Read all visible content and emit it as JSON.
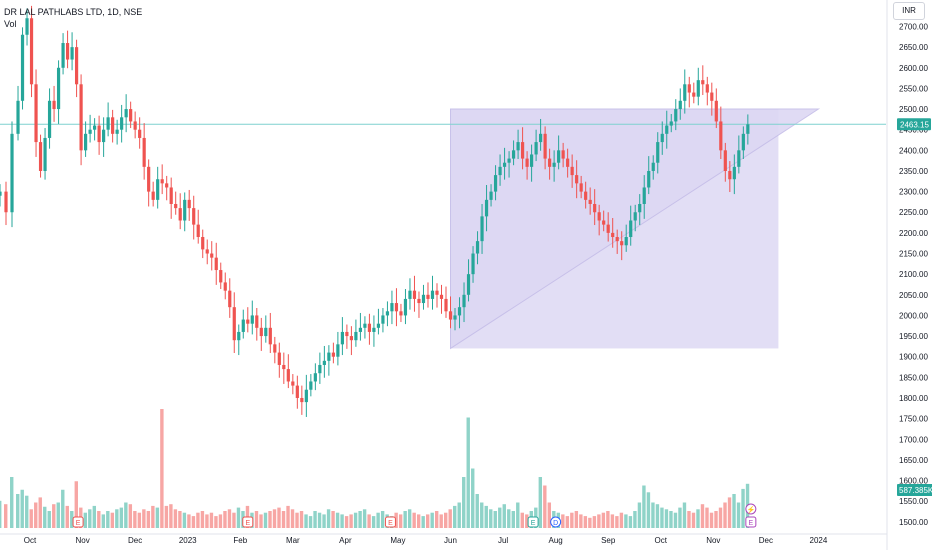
{
  "header": {
    "title": "DR LAL PATHLABS LTD, 1D, NSE",
    "vol_label": "Vol",
    "currency": "INR"
  },
  "chart_data": {
    "type": "candlestick",
    "y_ticks": [
      1500,
      1550,
      1600,
      1650,
      1700,
      1750,
      1800,
      1850,
      1900,
      1950,
      2000,
      2050,
      2100,
      2150,
      2200,
      2250,
      2300,
      2350,
      2400,
      2450,
      2500,
      2550,
      2600,
      2650,
      2700
    ],
    "y_tick_labels": [
      "1500.00",
      "1550.00",
      "1600.00",
      "1650.00",
      "1700.00",
      "1750.00",
      "1800.00",
      "1850.00",
      "1900.00",
      "1950.00",
      "2000.00",
      "2050.00",
      "2100.00",
      "2150.00",
      "2200.00",
      "2250.00",
      "2300.00",
      "2350.00",
      "2400.00",
      "2450.00",
      "2500.00",
      "2550.00",
      "2600.00",
      "2650.00",
      "2700.00"
    ],
    "ylim": [
      1485,
      2740
    ],
    "x_labels": [
      {
        "label": "Oct",
        "x": 0
      },
      {
        "label": "Nov",
        "x": 35
      },
      {
        "label": "Dec",
        "x": 70
      },
      {
        "label": "2023",
        "x": 105
      },
      {
        "label": "Feb",
        "x": 140
      },
      {
        "label": "Mar",
        "x": 175
      },
      {
        "label": "Apr",
        "x": 210
      },
      {
        "label": "May",
        "x": 245
      },
      {
        "label": "Jun",
        "x": 280
      },
      {
        "label": "Jul",
        "x": 315
      },
      {
        "label": "Aug",
        "x": 350
      },
      {
        "label": "Sep",
        "x": 385
      },
      {
        "label": "Oct",
        "x": 420
      },
      {
        "label": "Nov",
        "x": 455
      },
      {
        "label": "Dec",
        "x": 490
      },
      {
        "label": "2024",
        "x": 525
      }
    ],
    "xlim": [
      -20,
      570
    ],
    "price_path": [
      [
        -20,
        2300
      ],
      [
        -16,
        2250
      ],
      [
        -12,
        2440
      ],
      [
        -8,
        2520
      ],
      [
        -5,
        2680
      ],
      [
        -2,
        2720
      ],
      [
        1,
        2560
      ],
      [
        4,
        2420
      ],
      [
        7,
        2350
      ],
      [
        10,
        2430
      ],
      [
        13,
        2520
      ],
      [
        16,
        2500
      ],
      [
        19,
        2600
      ],
      [
        22,
        2660
      ],
      [
        25,
        2620
      ],
      [
        28,
        2650
      ],
      [
        31,
        2560
      ],
      [
        34,
        2400
      ],
      [
        37,
        2440
      ],
      [
        40,
        2450
      ],
      [
        43,
        2460
      ],
      [
        46,
        2420
      ],
      [
        49,
        2450
      ],
      [
        52,
        2480
      ],
      [
        55,
        2440
      ],
      [
        58,
        2450
      ],
      [
        61,
        2480
      ],
      [
        64,
        2500
      ],
      [
        67,
        2470
      ],
      [
        70,
        2450
      ],
      [
        73,
        2430
      ],
      [
        76,
        2360
      ],
      [
        79,
        2300
      ],
      [
        82,
        2280
      ],
      [
        85,
        2330
      ],
      [
        88,
        2320
      ],
      [
        91,
        2310
      ],
      [
        94,
        2270
      ],
      [
        97,
        2260
      ],
      [
        100,
        2230
      ],
      [
        103,
        2280
      ],
      [
        106,
        2260
      ],
      [
        109,
        2220
      ],
      [
        112,
        2190
      ],
      [
        115,
        2160
      ],
      [
        118,
        2150
      ],
      [
        121,
        2140
      ],
      [
        124,
        2110
      ],
      [
        127,
        2080
      ],
      [
        130,
        2060
      ],
      [
        133,
        2020
      ],
      [
        136,
        1940
      ],
      [
        139,
        1960
      ],
      [
        142,
        1990
      ],
      [
        145,
        1980
      ],
      [
        148,
        2000
      ],
      [
        151,
        1970
      ],
      [
        154,
        1950
      ],
      [
        157,
        1970
      ],
      [
        160,
        1930
      ],
      [
        163,
        1910
      ],
      [
        166,
        1880
      ],
      [
        169,
        1870
      ],
      [
        172,
        1840
      ],
      [
        175,
        1830
      ],
      [
        178,
        1800
      ],
      [
        181,
        1790
      ],
      [
        184,
        1820
      ],
      [
        187,
        1840
      ],
      [
        190,
        1860
      ],
      [
        193,
        1880
      ],
      [
        196,
        1890
      ],
      [
        199,
        1910
      ],
      [
        202,
        1900
      ],
      [
        205,
        1930
      ],
      [
        208,
        1960
      ],
      [
        211,
        1950
      ],
      [
        214,
        1940
      ],
      [
        217,
        1960
      ],
      [
        220,
        1970
      ],
      [
        223,
        1980
      ],
      [
        226,
        1960
      ],
      [
        229,
        1970
      ],
      [
        232,
        1980
      ],
      [
        235,
        2000
      ],
      [
        238,
        2010
      ],
      [
        241,
        2030
      ],
      [
        244,
        2010
      ],
      [
        247,
        2000
      ],
      [
        250,
        2040
      ],
      [
        253,
        2060
      ],
      [
        256,
        2040
      ],
      [
        259,
        2030
      ],
      [
        262,
        2050
      ],
      [
        265,
        2040
      ],
      [
        268,
        2060
      ],
      [
        271,
        2050
      ],
      [
        274,
        2040
      ],
      [
        277,
        2010
      ],
      [
        280,
        1990
      ],
      [
        283,
        2000
      ],
      [
        286,
        2020
      ],
      [
        289,
        2050
      ],
      [
        292,
        2100
      ],
      [
        295,
        2150
      ],
      [
        298,
        2180
      ],
      [
        301,
        2240
      ],
      [
        304,
        2280
      ],
      [
        307,
        2300
      ],
      [
        310,
        2340
      ],
      [
        313,
        2360
      ],
      [
        316,
        2370
      ],
      [
        319,
        2380
      ],
      [
        322,
        2400
      ],
      [
        325,
        2420
      ],
      [
        328,
        2380
      ],
      [
        331,
        2360
      ],
      [
        334,
        2390
      ],
      [
        337,
        2420
      ],
      [
        340,
        2440
      ],
      [
        343,
        2380
      ],
      [
        346,
        2360
      ],
      [
        349,
        2370
      ],
      [
        352,
        2400
      ],
      [
        355,
        2380
      ],
      [
        358,
        2360
      ],
      [
        361,
        2340
      ],
      [
        364,
        2320
      ],
      [
        367,
        2300
      ],
      [
        370,
        2280
      ],
      [
        373,
        2270
      ],
      [
        376,
        2250
      ],
      [
        379,
        2230
      ],
      [
        382,
        2220
      ],
      [
        385,
        2200
      ],
      [
        388,
        2190
      ],
      [
        391,
        2180
      ],
      [
        394,
        2170
      ],
      [
        397,
        2190
      ],
      [
        400,
        2230
      ],
      [
        403,
        2250
      ],
      [
        406,
        2270
      ],
      [
        409,
        2310
      ],
      [
        412,
        2350
      ],
      [
        415,
        2370
      ],
      [
        418,
        2420
      ],
      [
        421,
        2440
      ],
      [
        424,
        2460
      ],
      [
        427,
        2470
      ],
      [
        430,
        2500
      ],
      [
        433,
        2520
      ],
      [
        436,
        2560
      ],
      [
        439,
        2540
      ],
      [
        442,
        2530
      ],
      [
        445,
        2570
      ],
      [
        448,
        2560
      ],
      [
        451,
        2540
      ],
      [
        454,
        2520
      ],
      [
        457,
        2470
      ],
      [
        460,
        2400
      ],
      [
        463,
        2350
      ],
      [
        466,
        2330
      ],
      [
        469,
        2360
      ],
      [
        472,
        2400
      ],
      [
        475,
        2440
      ],
      [
        478,
        2463
      ]
    ],
    "volume_path": [
      [
        -20,
        32
      ],
      [
        -16,
        28
      ],
      [
        -12,
        60
      ],
      [
        -8,
        40
      ],
      [
        -5,
        45
      ],
      [
        -2,
        38
      ],
      [
        1,
        22
      ],
      [
        4,
        30
      ],
      [
        7,
        36
      ],
      [
        10,
        25
      ],
      [
        13,
        20
      ],
      [
        16,
        28
      ],
      [
        19,
        30
      ],
      [
        22,
        45
      ],
      [
        25,
        26
      ],
      [
        28,
        20
      ],
      [
        31,
        55
      ],
      [
        34,
        24
      ],
      [
        37,
        18
      ],
      [
        40,
        22
      ],
      [
        43,
        26
      ],
      [
        46,
        20
      ],
      [
        49,
        16
      ],
      [
        52,
        20
      ],
      [
        55,
        18
      ],
      [
        58,
        22
      ],
      [
        61,
        24
      ],
      [
        64,
        30
      ],
      [
        67,
        28
      ],
      [
        70,
        20
      ],
      [
        73,
        18
      ],
      [
        76,
        22
      ],
      [
        79,
        20
      ],
      [
        82,
        26
      ],
      [
        85,
        24
      ],
      [
        88,
        140
      ],
      [
        91,
        26
      ],
      [
        94,
        28
      ],
      [
        97,
        22
      ],
      [
        100,
        20
      ],
      [
        103,
        18
      ],
      [
        106,
        16
      ],
      [
        109,
        14
      ],
      [
        112,
        18
      ],
      [
        115,
        20
      ],
      [
        118,
        16
      ],
      [
        121,
        18
      ],
      [
        124,
        14
      ],
      [
        127,
        16
      ],
      [
        130,
        20
      ],
      [
        133,
        22
      ],
      [
        136,
        18
      ],
      [
        139,
        24
      ],
      [
        142,
        20
      ],
      [
        145,
        26
      ],
      [
        148,
        18
      ],
      [
        151,
        20
      ],
      [
        154,
        16
      ],
      [
        157,
        18
      ],
      [
        160,
        20
      ],
      [
        163,
        22
      ],
      [
        166,
        24
      ],
      [
        169,
        20
      ],
      [
        172,
        26
      ],
      [
        175,
        22
      ],
      [
        178,
        18
      ],
      [
        181,
        20
      ],
      [
        184,
        16
      ],
      [
        187,
        14
      ],
      [
        190,
        20
      ],
      [
        193,
        18
      ],
      [
        196,
        16
      ],
      [
        199,
        22
      ],
      [
        202,
        20
      ],
      [
        205,
        18
      ],
      [
        208,
        16
      ],
      [
        211,
        14
      ],
      [
        214,
        16
      ],
      [
        217,
        18
      ],
      [
        220,
        20
      ],
      [
        223,
        22
      ],
      [
        226,
        16
      ],
      [
        229,
        14
      ],
      [
        232,
        18
      ],
      [
        235,
        20
      ],
      [
        238,
        16
      ],
      [
        241,
        14
      ],
      [
        244,
        18
      ],
      [
        247,
        16
      ],
      [
        250,
        20
      ],
      [
        253,
        22
      ],
      [
        256,
        18
      ],
      [
        259,
        16
      ],
      [
        262,
        14
      ],
      [
        265,
        16
      ],
      [
        268,
        18
      ],
      [
        271,
        20
      ],
      [
        274,
        16
      ],
      [
        277,
        18
      ],
      [
        280,
        22
      ],
      [
        283,
        26
      ],
      [
        286,
        30
      ],
      [
        289,
        60
      ],
      [
        292,
        130
      ],
      [
        295,
        70
      ],
      [
        298,
        40
      ],
      [
        301,
        30
      ],
      [
        304,
        26
      ],
      [
        307,
        22
      ],
      [
        310,
        20
      ],
      [
        313,
        24
      ],
      [
        316,
        28
      ],
      [
        319,
        22
      ],
      [
        322,
        20
      ],
      [
        325,
        30
      ],
      [
        328,
        18
      ],
      [
        331,
        16
      ],
      [
        334,
        20
      ],
      [
        337,
        24
      ],
      [
        340,
        60
      ],
      [
        343,
        50
      ],
      [
        346,
        30
      ],
      [
        349,
        20
      ],
      [
        352,
        18
      ],
      [
        355,
        16
      ],
      [
        358,
        14
      ],
      [
        361,
        18
      ],
      [
        364,
        20
      ],
      [
        367,
        16
      ],
      [
        370,
        14
      ],
      [
        373,
        12
      ],
      [
        376,
        14
      ],
      [
        379,
        16
      ],
      [
        382,
        18
      ],
      [
        385,
        20
      ],
      [
        388,
        16
      ],
      [
        391,
        14
      ],
      [
        394,
        18
      ],
      [
        397,
        16
      ],
      [
        400,
        14
      ],
      [
        403,
        20
      ],
      [
        406,
        30
      ],
      [
        409,
        50
      ],
      [
        412,
        42
      ],
      [
        415,
        30
      ],
      [
        418,
        28
      ],
      [
        421,
        24
      ],
      [
        424,
        22
      ],
      [
        427,
        20
      ],
      [
        430,
        18
      ],
      [
        433,
        24
      ],
      [
        436,
        30
      ],
      [
        439,
        20
      ],
      [
        442,
        18
      ],
      [
        445,
        22
      ],
      [
        448,
        28
      ],
      [
        451,
        24
      ],
      [
        454,
        18
      ],
      [
        457,
        20
      ],
      [
        460,
        24
      ],
      [
        463,
        30
      ],
      [
        466,
        36
      ],
      [
        469,
        40
      ],
      [
        472,
        30
      ],
      [
        475,
        46
      ],
      [
        478,
        52
      ]
    ],
    "highlight_box": {
      "x0": 280,
      "x1": 525,
      "y0": 2500,
      "y1": 1920
    },
    "triangle": {
      "apex_x": 280,
      "apex_y": 1920,
      "top_left_x": 280,
      "top_y": 2500,
      "right_x": 525,
      "right_y": 2500
    },
    "current_price": "2463.15",
    "current_price_value": 2463.15,
    "current_volume": "587.385K",
    "event_markers": [
      {
        "x": 32,
        "label": "E",
        "kind": "earnings"
      },
      {
        "x": 145,
        "label": "E",
        "kind": "earnings"
      },
      {
        "x": 240,
        "label": "E",
        "kind": "earnings"
      },
      {
        "x": 335,
        "label": "E",
        "kind": "earnings"
      },
      {
        "x": 350,
        "label": "D",
        "kind": "dividend"
      },
      {
        "x": 480,
        "label": "E",
        "kind": "earnings"
      }
    ],
    "colors": {
      "up": "#26a69a",
      "down": "#ef5350",
      "volume_up": "#8fd3c8",
      "volume_down": "#f7a6a4",
      "highlight": "#ddd8f3",
      "price_line": "#7fd1cf",
      "price_badge": "#26a69a"
    }
  }
}
